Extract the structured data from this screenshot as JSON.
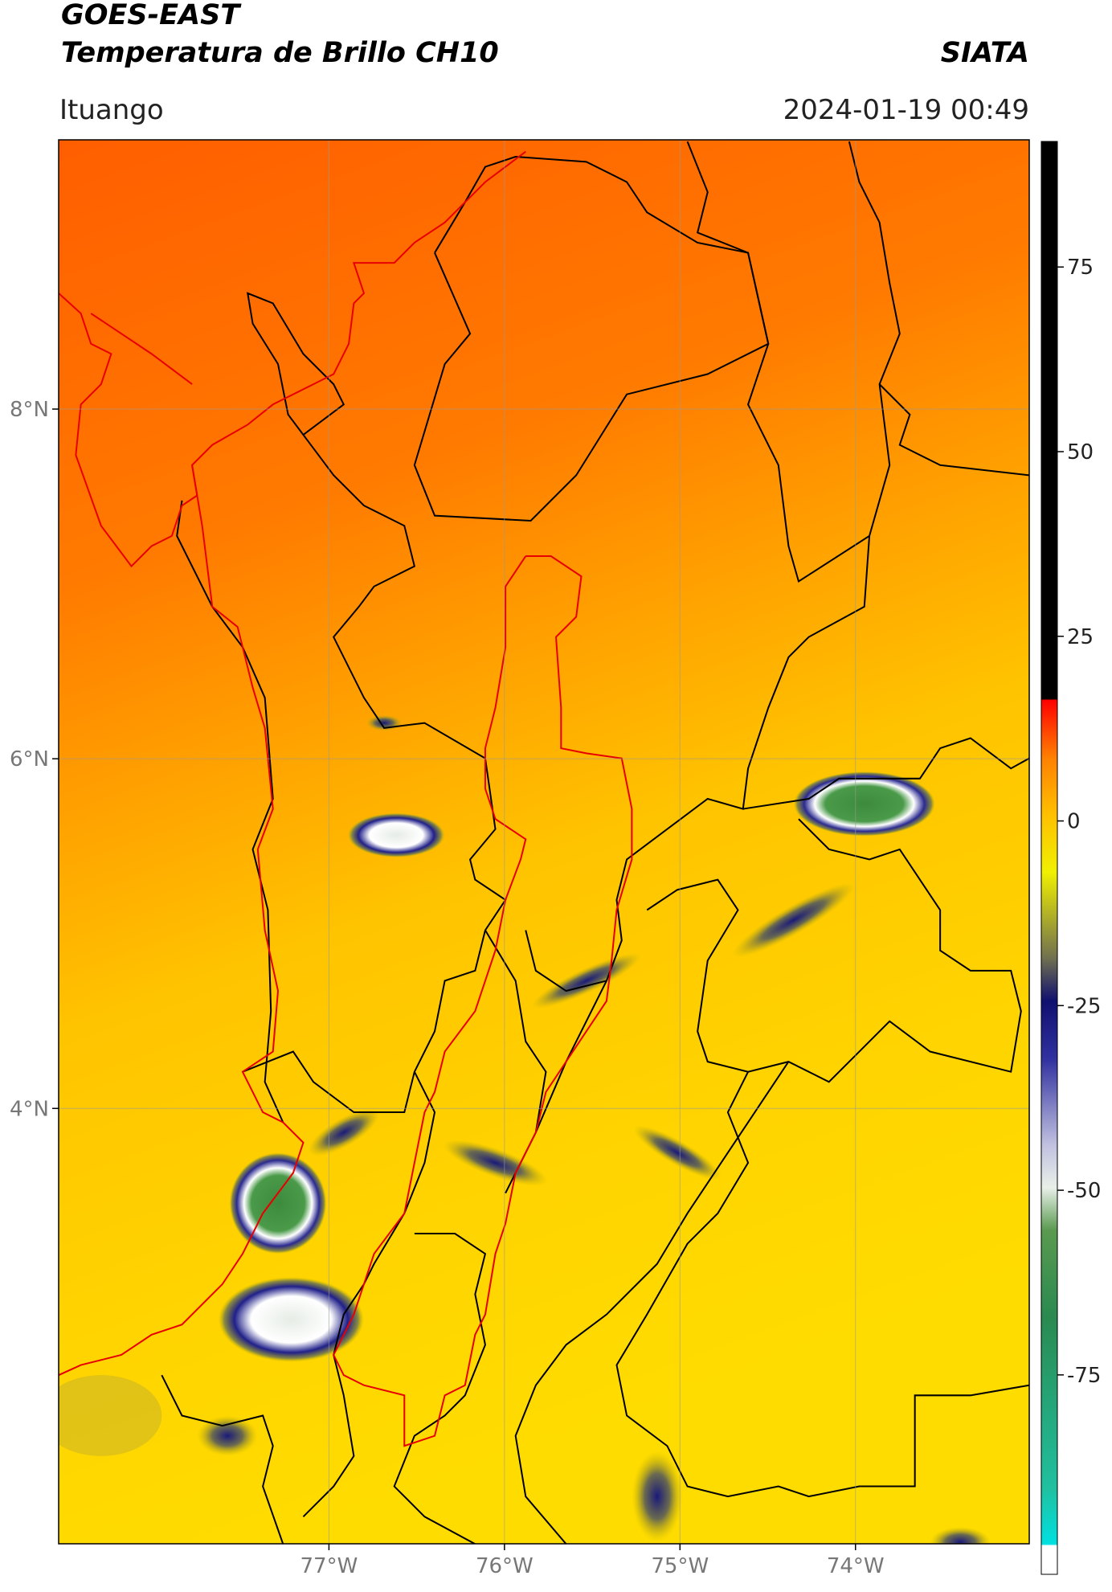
{
  "chart_data": {
    "type": "map",
    "title": "GOES-EAST",
    "subtitle": "Temperatura de Brillo CH10",
    "source": "SIATA",
    "location": "Ituango",
    "datetime": "2024-01-19 00:49",
    "xlim": [
      -78.54,
      -73.01
    ],
    "ylim": [
      1.51,
      9.54
    ],
    "xticks": [
      {
        "value": -77,
        "label": "77°W"
      },
      {
        "value": -76,
        "label": "76°W"
      },
      {
        "value": -75,
        "label": "75°W"
      },
      {
        "value": -74,
        "label": "74°W"
      }
    ],
    "yticks": [
      {
        "value": 4,
        "label": "4°N"
      },
      {
        "value": 6,
        "label": "6°N"
      },
      {
        "value": 8,
        "label": "8°N"
      }
    ],
    "grid": true,
    "colorbar": {
      "clim": [
        -102,
        92
      ],
      "ticks": [
        -75,
        -50,
        -25,
        0,
        25,
        50,
        75
      ]
    }
  }
}
